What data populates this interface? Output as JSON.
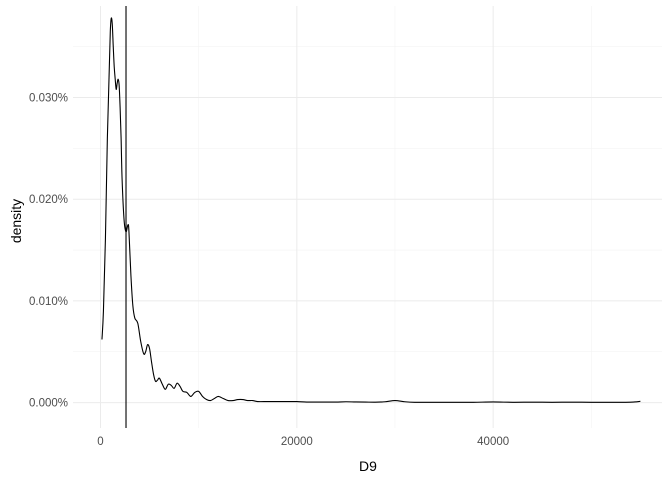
{
  "chart_data": {
    "type": "line",
    "subtype": "density",
    "title": "",
    "xlabel": "D9",
    "ylabel": "density",
    "xlim": [
      -2800,
      57200
    ],
    "ylim": [
      -2.5e-05,
      0.00039
    ],
    "x_ticks": [
      {
        "value": 0,
        "label": "0"
      },
      {
        "value": 20000,
        "label": "20000"
      },
      {
        "value": 40000,
        "label": "40000"
      }
    ],
    "y_ticks": [
      {
        "value": 0,
        "label": "0.000%"
      },
      {
        "value": 0.0001,
        "label": "0.010%"
      },
      {
        "value": 0.0002,
        "label": "0.020%"
      },
      {
        "value": 0.0003,
        "label": "0.030%"
      }
    ],
    "grid": true,
    "legend": "none",
    "reference_line": {
      "orientation": "vertical",
      "x": 2600
    },
    "series": [
      {
        "color": "#000000",
        "x": [
          150,
          300,
          500,
          700,
          900,
          1000,
          1100,
          1200,
          1300,
          1400,
          1500,
          1600,
          1700,
          1800,
          1900,
          2000,
          2100,
          2200,
          2400,
          2600,
          2800,
          2900,
          3100,
          3300,
          3500,
          3800,
          4100,
          4400,
          4600,
          4800,
          5000,
          5200,
          5400,
          5600,
          5800,
          6000,
          6300,
          6600,
          6900,
          7200,
          7500,
          7800,
          8100,
          8400,
          8800,
          9200,
          9600,
          10000,
          10400,
          10800,
          11200,
          11600,
          12000,
          12500,
          13000,
          13500,
          14000,
          14500,
          15000,
          15500,
          16000,
          17000,
          18000,
          19000,
          20000,
          21000,
          22000,
          23000,
          24000,
          25000,
          26000,
          27000,
          28000,
          29000,
          30000,
          31000,
          32000,
          34000,
          36000,
          38000,
          40000,
          42000,
          44000,
          46000,
          48000,
          50000,
          52000,
          54000,
          55000
        ],
        "y": [
          6.2e-05,
          9e-05,
          0.00016,
          0.00026,
          0.00033,
          0.000365,
          0.000378,
          0.000372,
          0.00035,
          0.00033,
          0.000318,
          0.000308,
          0.000314,
          0.000318,
          0.000312,
          0.00029,
          0.00026,
          0.00022,
          0.00018,
          0.000168,
          0.000175,
          0.000168,
          0.000125,
          9.5e-05,
          8.3e-05,
          7.8e-05,
          6e-05,
          4.8e-05,
          5e-05,
          5.7e-05,
          5.3e-05,
          4e-05,
          2.8e-05,
          2.1e-05,
          2.2e-05,
          2.4e-05,
          1.8e-05,
          1.3e-05,
          1.8e-05,
          1.7e-05,
          1.4e-05,
          1.9e-05,
          1.6e-05,
          1.1e-05,
          1e-05,
          6e-06,
          1e-05,
          1.1e-05,
          6e-06,
          3e-06,
          2e-06,
          4e-06,
          6e-06,
          4e-06,
          2e-06,
          2e-06,
          3e-06,
          3e-06,
          2e-06,
          2e-06,
          1e-06,
          1e-06,
          1e-06,
          1e-06,
          1e-06,
          5e-07,
          5e-07,
          5e-07,
          5e-07,
          8e-07,
          6e-07,
          5e-07,
          4e-07,
          8e-07,
          2e-06,
          8e-07,
          3e-07,
          3e-07,
          3e-07,
          3e-07,
          6e-07,
          3e-07,
          4e-07,
          3e-07,
          4e-07,
          3e-07,
          3e-07,
          4e-07,
          1.2e-06
        ]
      }
    ]
  }
}
